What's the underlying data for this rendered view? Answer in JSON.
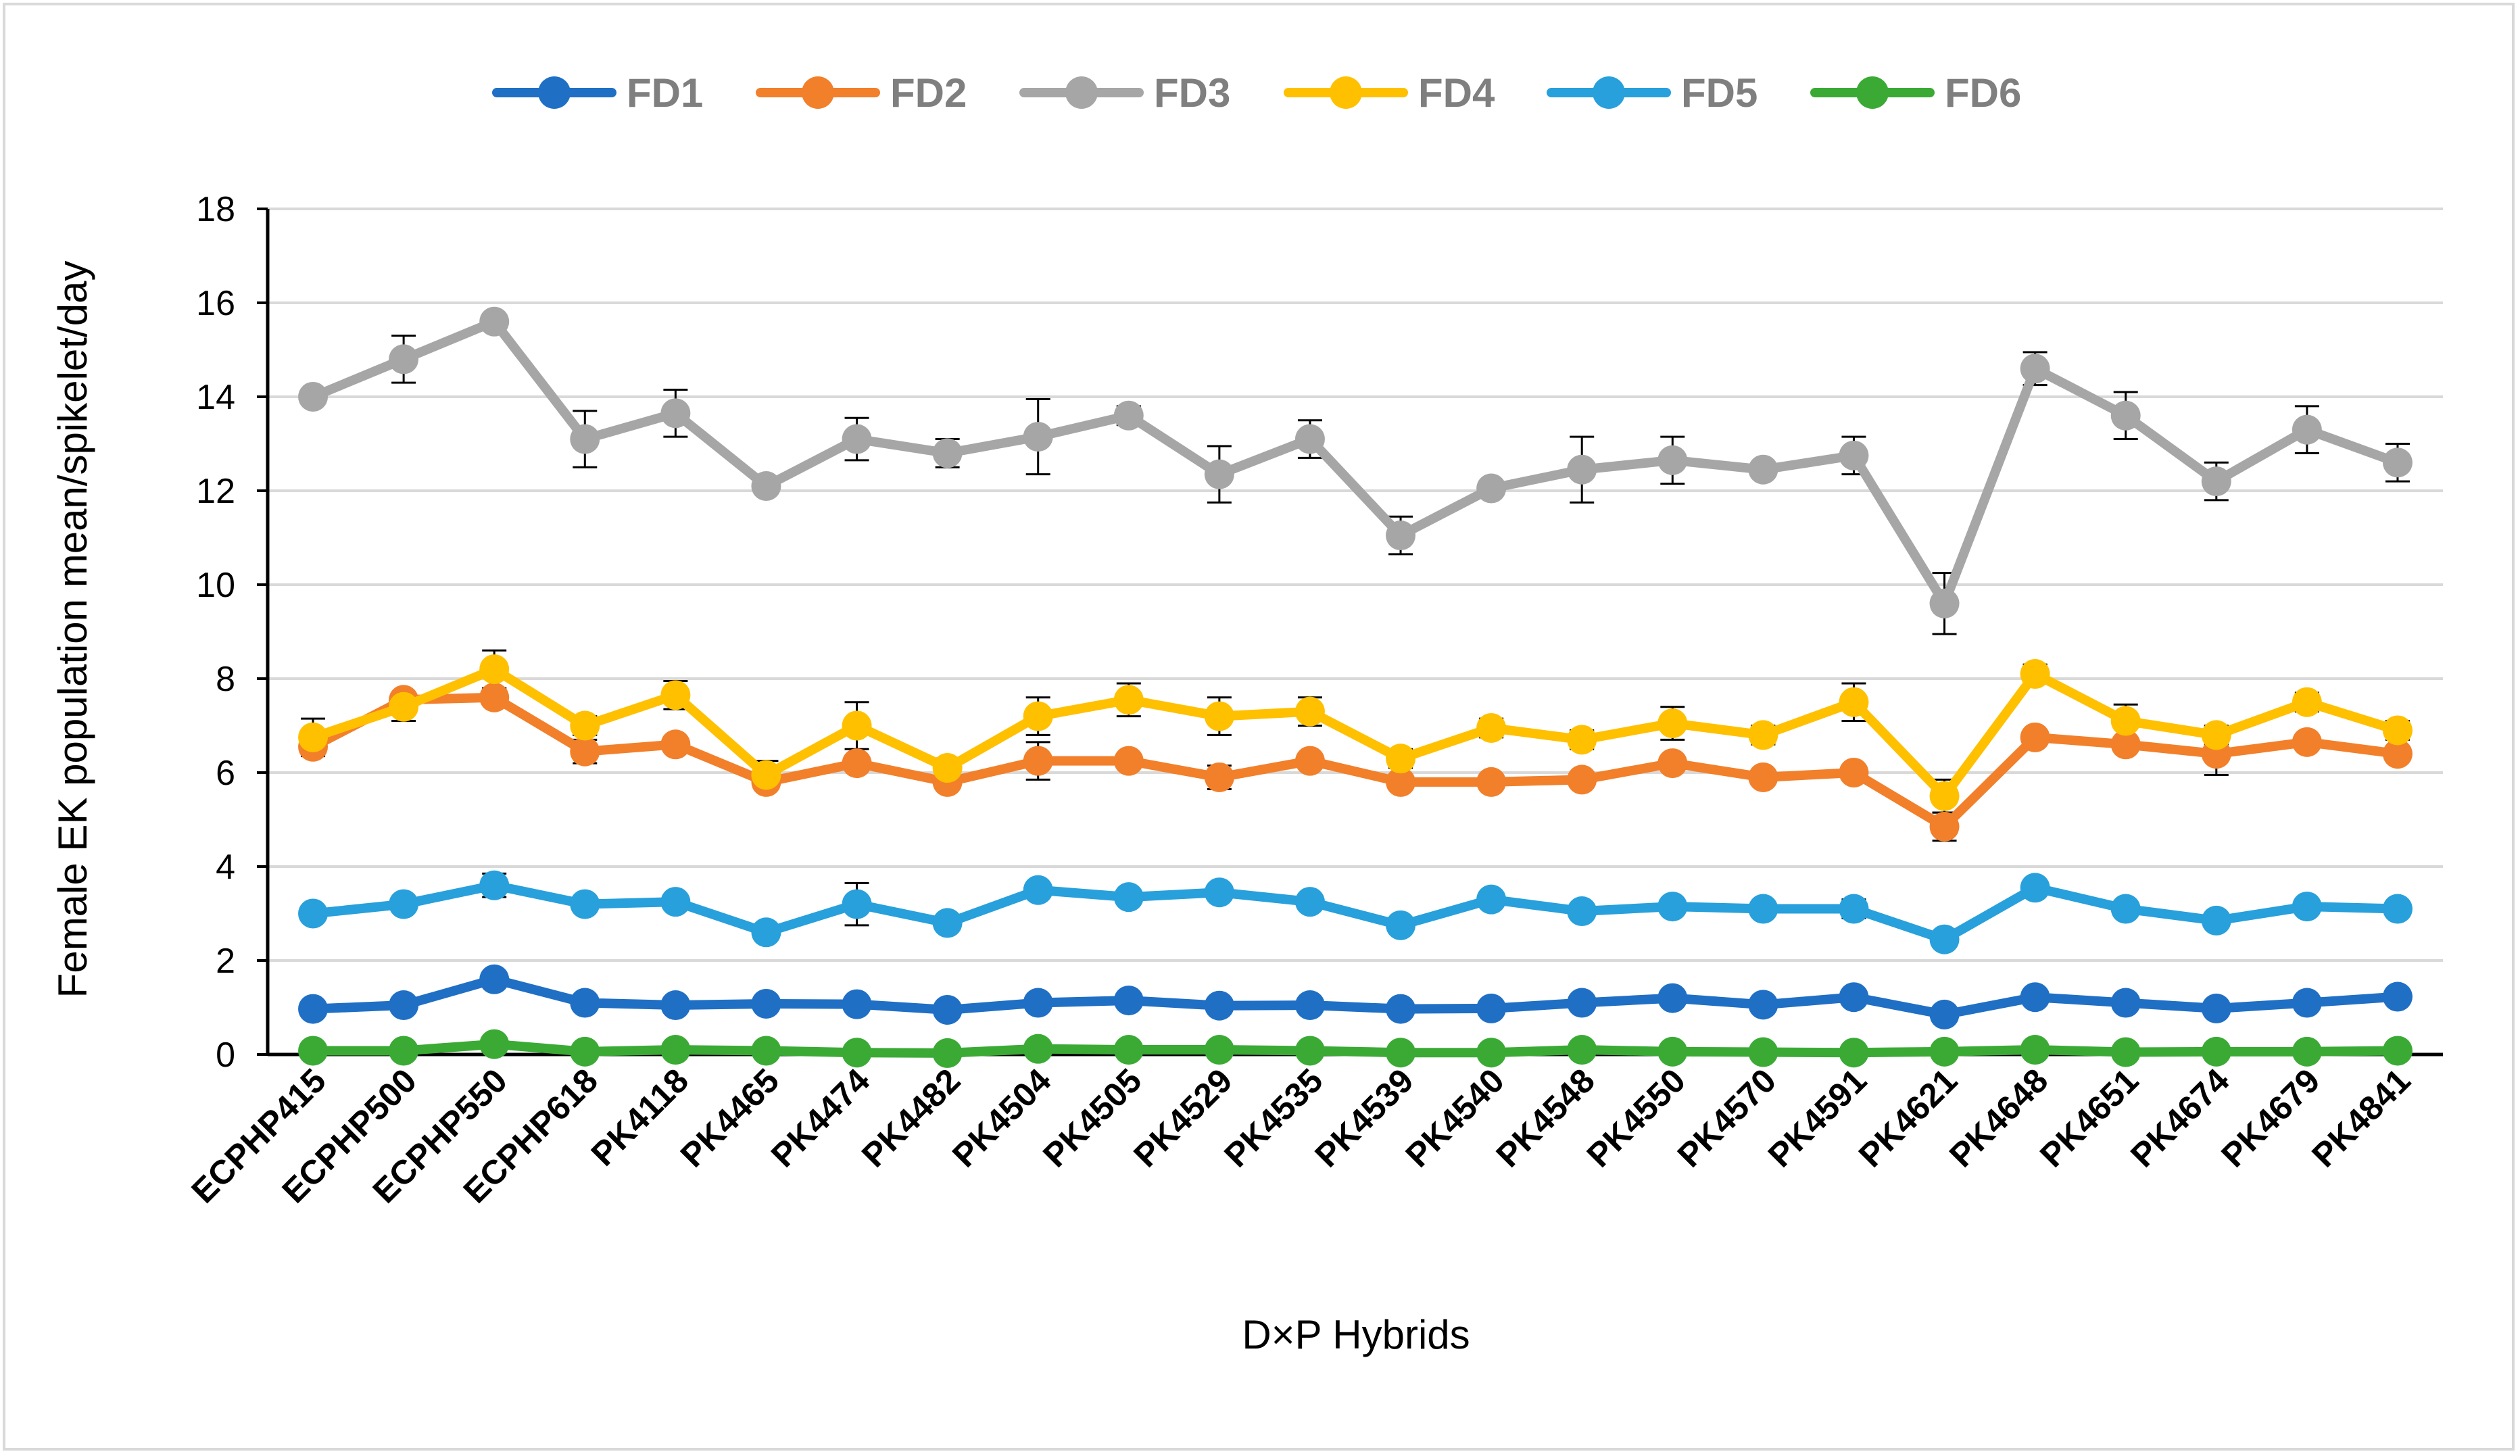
{
  "chart_data": {
    "type": "line",
    "title": "",
    "xlabel": "D×P Hybrids",
    "ylabel": "Female EK population mean/spikelet/day",
    "ylim": [
      0,
      18
    ],
    "yticks": [
      0,
      2,
      4,
      6,
      8,
      10,
      12,
      14,
      16,
      18
    ],
    "grid": "horizontal",
    "legend_position": "top",
    "categories": [
      "ECPHP415",
      "ECPHP500",
      "ECPHP550",
      "ECPHP618",
      "PK4118",
      "PK4465",
      "PK4474",
      "PK4482",
      "PK4504",
      "PK4505",
      "PK4529",
      "PK4535",
      "PK4539",
      "PK4540",
      "PK4548",
      "PK4550",
      "PK4570",
      "PK4591",
      "PK4621",
      "PK4648",
      "PK4651",
      "PK4674",
      "PK4679",
      "PK4841"
    ],
    "series": [
      {
        "name": "FD1",
        "color": "#1f6fc5",
        "values": [
          0.97,
          1.05,
          1.6,
          1.1,
          1.05,
          1.08,
          1.07,
          0.95,
          1.1,
          1.15,
          1.04,
          1.05,
          0.97,
          0.98,
          1.1,
          1.2,
          1.06,
          1.22,
          0.85,
          1.22,
          1.1,
          0.98,
          1.1,
          1.23
        ],
        "errors": [
          0.08,
          0.08,
          0.1,
          0.08,
          0.08,
          0.08,
          0.08,
          0.08,
          0.08,
          0.08,
          0.08,
          0.08,
          0.08,
          0.08,
          0.08,
          0.08,
          0.08,
          0.08,
          0.08,
          0.08,
          0.08,
          0.08,
          0.08,
          0.08
        ]
      },
      {
        "name": "FD2",
        "color": "#f27f2a",
        "values": [
          6.55,
          7.55,
          7.6,
          6.45,
          6.6,
          5.8,
          6.2,
          5.8,
          6.25,
          6.25,
          5.9,
          6.25,
          5.8,
          5.8,
          5.85,
          6.2,
          5.9,
          6.0,
          4.85,
          6.75,
          6.6,
          6.4,
          6.65,
          6.4
        ],
        "errors": [
          0.12,
          0.12,
          0.12,
          0.25,
          0.12,
          0.12,
          0.12,
          0.12,
          0.4,
          0.12,
          0.25,
          0.12,
          0.12,
          0.12,
          0.12,
          0.12,
          0.12,
          0.12,
          0.3,
          0.12,
          0.12,
          0.45,
          0.12,
          0.12
        ]
      },
      {
        "name": "FD3",
        "color": "#a6a6a6",
        "values": [
          14.0,
          14.8,
          15.6,
          13.1,
          13.65,
          12.1,
          13.1,
          12.8,
          13.15,
          13.6,
          12.35,
          13.1,
          11.05,
          12.05,
          12.45,
          12.65,
          12.45,
          12.75,
          9.6,
          14.6,
          13.6,
          12.2,
          13.3,
          12.6
        ],
        "errors": [
          0.15,
          0.5,
          0.1,
          0.6,
          0.5,
          0.1,
          0.45,
          0.3,
          0.8,
          0.2,
          0.6,
          0.4,
          0.4,
          0.1,
          0.7,
          0.5,
          0.1,
          0.4,
          0.65,
          0.35,
          0.5,
          0.4,
          0.5,
          0.4
        ]
      },
      {
        "name": "FD4",
        "color": "#ffc000",
        "values": [
          6.75,
          7.4,
          8.2,
          7.0,
          7.65,
          5.95,
          7.0,
          6.1,
          7.2,
          7.55,
          7.2,
          7.3,
          6.3,
          6.95,
          6.7,
          7.05,
          6.8,
          7.5,
          5.5,
          8.1,
          7.1,
          6.8,
          7.5,
          6.9
        ],
        "errors": [
          0.4,
          0.3,
          0.4,
          0.2,
          0.3,
          0.3,
          0.5,
          0.2,
          0.4,
          0.35,
          0.4,
          0.3,
          0.2,
          0.2,
          0.2,
          0.35,
          0.2,
          0.4,
          0.35,
          0.2,
          0.35,
          0.2,
          0.2,
          0.2
        ]
      },
      {
        "name": "FD5",
        "color": "#27a0dc",
        "values": [
          3.0,
          3.2,
          3.6,
          3.2,
          3.25,
          2.6,
          3.2,
          2.8,
          3.5,
          3.35,
          3.45,
          3.25,
          2.75,
          3.3,
          3.05,
          3.15,
          3.1,
          3.1,
          2.45,
          3.55,
          3.1,
          2.85,
          3.15,
          3.1
        ],
        "errors": [
          0.1,
          0.1,
          0.25,
          0.1,
          0.1,
          0.1,
          0.45,
          0.1,
          0.1,
          0.1,
          0.1,
          0.1,
          0.1,
          0.15,
          0.1,
          0.1,
          0.1,
          0.2,
          0.1,
          0.1,
          0.1,
          0.1,
          0.1,
          0.1
        ]
      },
      {
        "name": "FD6",
        "color": "#3aaa35",
        "values": [
          0.08,
          0.08,
          0.22,
          0.06,
          0.1,
          0.08,
          0.04,
          0.03,
          0.12,
          0.1,
          0.1,
          0.08,
          0.04,
          0.04,
          0.1,
          0.06,
          0.05,
          0.04,
          0.06,
          0.1,
          0.05,
          0.06,
          0.06,
          0.08
        ],
        "errors": [
          0.03,
          0.03,
          0.05,
          0.03,
          0.03,
          0.03,
          0.03,
          0.03,
          0.03,
          0.03,
          0.03,
          0.03,
          0.03,
          0.03,
          0.03,
          0.03,
          0.03,
          0.03,
          0.03,
          0.03,
          0.03,
          0.03,
          0.03,
          0.03
        ]
      }
    ]
  }
}
